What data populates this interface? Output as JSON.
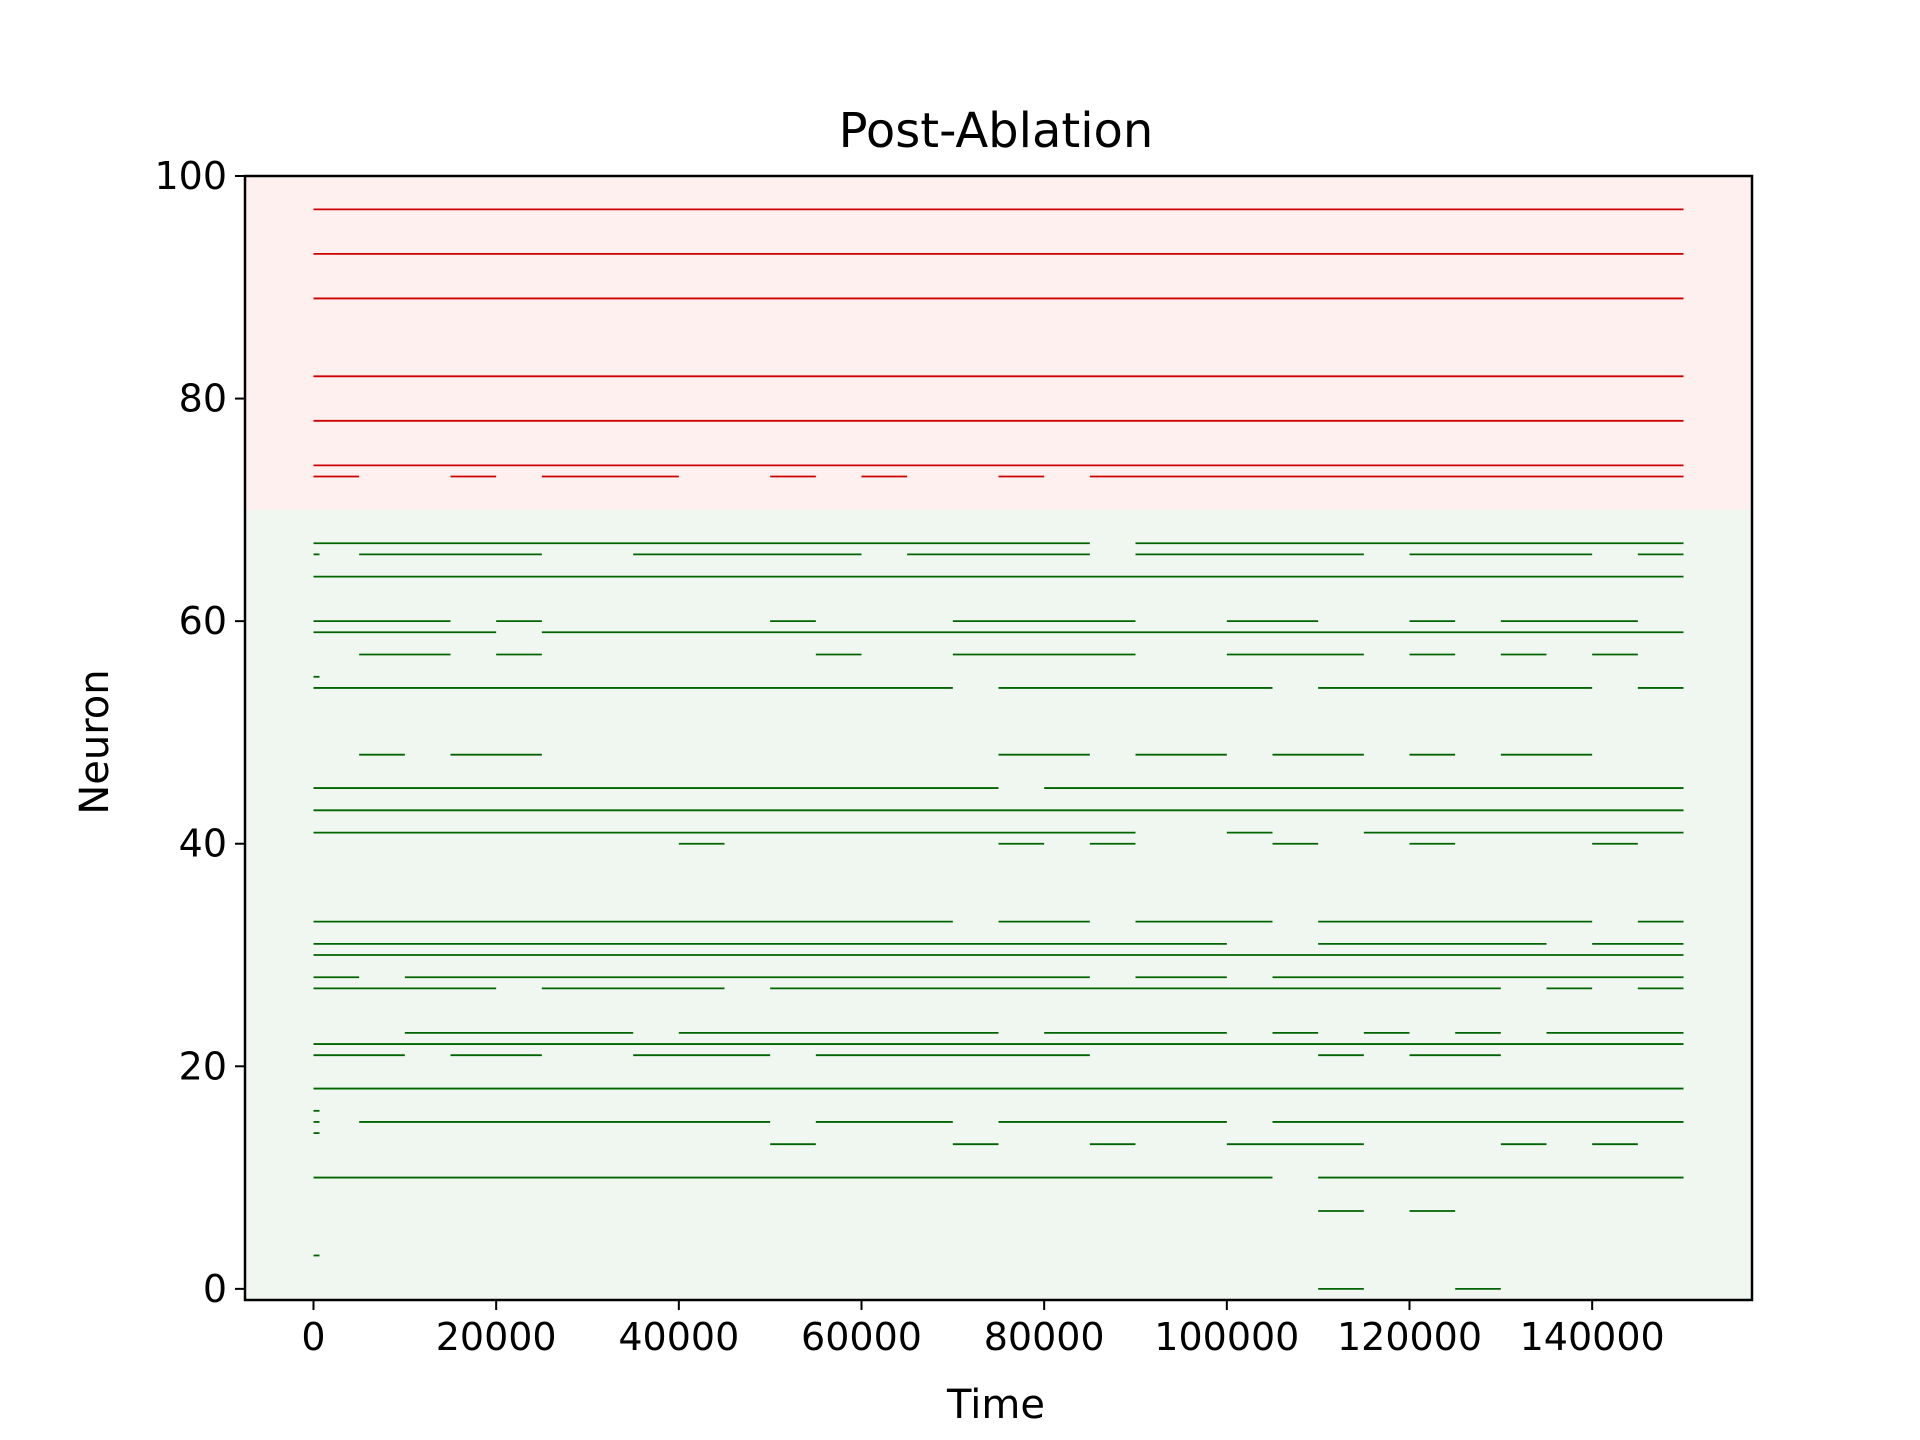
{
  "chart_data": {
    "type": "raster",
    "title": "Post-Ablation",
    "xlabel": "Time",
    "ylabel": "Neuron",
    "xlim": [
      -7500,
      157500
    ],
    "ylim": [
      -1,
      100
    ],
    "xticks": [
      0,
      20000,
      40000,
      60000,
      80000,
      100000,
      120000,
      140000
    ],
    "yticks": [
      0,
      20,
      40,
      60,
      80,
      100
    ],
    "grid": false,
    "legend": "none",
    "regions": [
      {
        "name": "ablated",
        "y_from": 70,
        "y_to": 100,
        "fill": "#fff0f0",
        "line": "#cc0000"
      },
      {
        "name": "intact",
        "y_from": -1,
        "y_to": 70,
        "fill": "#f0f7f0",
        "line": "#006400"
      }
    ],
    "spikes": [
      {
        "n": 97,
        "s": [
          [
            0,
            150000
          ]
        ]
      },
      {
        "n": 93,
        "s": [
          [
            0,
            150000
          ]
        ]
      },
      {
        "n": 89,
        "s": [
          [
            0,
            150000
          ]
        ]
      },
      {
        "n": 82,
        "s": [
          [
            0,
            150000
          ]
        ]
      },
      {
        "n": 78,
        "s": [
          [
            0,
            150000
          ]
        ]
      },
      {
        "n": 74,
        "s": [
          [
            0,
            150000
          ]
        ]
      },
      {
        "n": 73,
        "s": [
          [
            0,
            5000
          ],
          [
            15000,
            20000
          ],
          [
            25000,
            40000
          ],
          [
            50000,
            55000
          ],
          [
            60000,
            65000
          ],
          [
            75000,
            80000
          ],
          [
            85000,
            150000
          ]
        ]
      },
      {
        "n": 67,
        "s": [
          [
            0,
            85000
          ],
          [
            90000,
            150000
          ]
        ]
      },
      {
        "n": 66,
        "s": [
          [
            0,
            300
          ],
          [
            5000,
            25000
          ],
          [
            35000,
            60000
          ],
          [
            65000,
            85000
          ],
          [
            90000,
            115000
          ],
          [
            120000,
            140000
          ],
          [
            145000,
            150000
          ]
        ]
      },
      {
        "n": 64,
        "s": [
          [
            0,
            150000
          ]
        ]
      },
      {
        "n": 60,
        "s": [
          [
            0,
            15000
          ],
          [
            20000,
            25000
          ],
          [
            50000,
            55000
          ],
          [
            70000,
            90000
          ],
          [
            100000,
            110000
          ],
          [
            120000,
            125000
          ],
          [
            130000,
            145000
          ]
        ]
      },
      {
        "n": 59,
        "s": [
          [
            0,
            20000
          ],
          [
            25000,
            150000
          ]
        ]
      },
      {
        "n": 57,
        "s": [
          [
            5000,
            15000
          ],
          [
            20000,
            25000
          ],
          [
            55000,
            60000
          ],
          [
            70000,
            90000
          ],
          [
            100000,
            115000
          ],
          [
            120000,
            125000
          ],
          [
            130000,
            135000
          ],
          [
            140000,
            145000
          ]
        ]
      },
      {
        "n": 55,
        "s": [
          [
            0,
            300
          ]
        ]
      },
      {
        "n": 54,
        "s": [
          [
            0,
            70000
          ],
          [
            75000,
            105000
          ],
          [
            110000,
            140000
          ],
          [
            145000,
            150000
          ]
        ]
      },
      {
        "n": 48,
        "s": [
          [
            5000,
            10000
          ],
          [
            15000,
            25000
          ],
          [
            75000,
            85000
          ],
          [
            90000,
            100000
          ],
          [
            105000,
            115000
          ],
          [
            120000,
            125000
          ],
          [
            130000,
            140000
          ]
        ]
      },
      {
        "n": 45,
        "s": [
          [
            0,
            75000
          ],
          [
            80000,
            150000
          ]
        ]
      },
      {
        "n": 43,
        "s": [
          [
            0,
            150000
          ]
        ]
      },
      {
        "n": 41,
        "s": [
          [
            0,
            90000
          ],
          [
            100000,
            105000
          ],
          [
            115000,
            150000
          ]
        ]
      },
      {
        "n": 40,
        "s": [
          [
            40000,
            45000
          ],
          [
            75000,
            80000
          ],
          [
            85000,
            90000
          ],
          [
            105000,
            110000
          ],
          [
            120000,
            125000
          ],
          [
            140000,
            145000
          ]
        ]
      },
      {
        "n": 33,
        "s": [
          [
            0,
            70000
          ],
          [
            75000,
            85000
          ],
          [
            90000,
            105000
          ],
          [
            110000,
            140000
          ],
          [
            145000,
            150000
          ]
        ]
      },
      {
        "n": 31,
        "s": [
          [
            0,
            100000
          ],
          [
            110000,
            135000
          ],
          [
            140000,
            150000
          ]
        ]
      },
      {
        "n": 30,
        "s": [
          [
            0,
            150000
          ]
        ]
      },
      {
        "n": 28,
        "s": [
          [
            0,
            5000
          ],
          [
            10000,
            85000
          ],
          [
            90000,
            100000
          ],
          [
            105000,
            150000
          ]
        ]
      },
      {
        "n": 27,
        "s": [
          [
            0,
            20000
          ],
          [
            25000,
            45000
          ],
          [
            50000,
            130000
          ],
          [
            135000,
            140000
          ],
          [
            145000,
            150000
          ]
        ]
      },
      {
        "n": 23,
        "s": [
          [
            10000,
            35000
          ],
          [
            40000,
            75000
          ],
          [
            80000,
            100000
          ],
          [
            105000,
            110000
          ],
          [
            115000,
            120000
          ],
          [
            125000,
            130000
          ],
          [
            135000,
            150000
          ]
        ]
      },
      {
        "n": 22,
        "s": [
          [
            0,
            150000
          ]
        ]
      },
      {
        "n": 21,
        "s": [
          [
            0,
            10000
          ],
          [
            15000,
            25000
          ],
          [
            35000,
            50000
          ],
          [
            55000,
            85000
          ],
          [
            110000,
            115000
          ],
          [
            120000,
            130000
          ]
        ]
      },
      {
        "n": 18,
        "s": [
          [
            0,
            150000
          ]
        ]
      },
      {
        "n": 16,
        "s": [
          [
            0,
            300
          ]
        ]
      },
      {
        "n": 15,
        "s": [
          [
            0,
            300
          ],
          [
            5000,
            50000
          ],
          [
            55000,
            70000
          ],
          [
            75000,
            100000
          ],
          [
            105000,
            150000
          ]
        ]
      },
      {
        "n": 14,
        "s": [
          [
            0,
            300
          ]
        ]
      },
      {
        "n": 13,
        "s": [
          [
            50000,
            55000
          ],
          [
            70000,
            75000
          ],
          [
            85000,
            90000
          ],
          [
            100000,
            115000
          ],
          [
            130000,
            135000
          ],
          [
            140000,
            145000
          ]
        ]
      },
      {
        "n": 10,
        "s": [
          [
            0,
            105000
          ],
          [
            110000,
            150000
          ]
        ]
      },
      {
        "n": 7,
        "s": [
          [
            110000,
            115000
          ],
          [
            120000,
            125000
          ]
        ]
      },
      {
        "n": 3,
        "s": [
          [
            0,
            300
          ]
        ]
      },
      {
        "n": 0,
        "s": [
          [
            110000,
            115000
          ],
          [
            125000,
            130000
          ]
        ]
      }
    ]
  }
}
